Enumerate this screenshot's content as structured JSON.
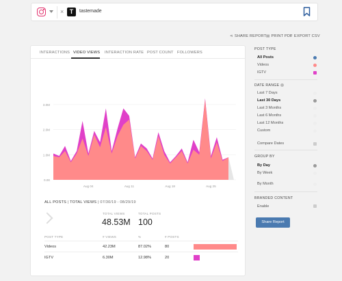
{
  "header": {
    "network_icon": "instagram-icon",
    "account_close": "×",
    "account_logo": "T",
    "account_name": "tastemade",
    "bookmark_icon": "bookmark-icon"
  },
  "actions": {
    "share_report": "SHARE REPORT",
    "print_pdf": "PRINT PDF",
    "export_csv": "EXPORT CSV"
  },
  "tabs": [
    "INTERACTIONS",
    "VIDEO VIEWS",
    "INTERACTION RATE",
    "POST COUNT",
    "FOLLOWERS"
  ],
  "active_tab": "VIDEO VIEWS",
  "chart_data": {
    "type": "area",
    "stacked": true,
    "y_ticks": [
      "0.00",
      "1.0M",
      "2.0M",
      "3.0M"
    ],
    "ylim": [
      0,
      3600000
    ],
    "x_ticks": [
      {
        "label": "Aug 04",
        "x": 6
      },
      {
        "label": "Aug 11",
        "x": 13
      },
      {
        "label": "Aug 18",
        "x": 20
      },
      {
        "label": "Aug 25",
        "x": 27
      }
    ],
    "x": [
      "Jul 30",
      "Jul 31",
      "Aug 01",
      "Aug 02",
      "Aug 03",
      "Aug 04",
      "Aug 05",
      "Aug 06",
      "Aug 07",
      "Aug 08",
      "Aug 09",
      "Aug 10",
      "Aug 11",
      "Aug 12",
      "Aug 13",
      "Aug 14",
      "Aug 15",
      "Aug 16",
      "Aug 17",
      "Aug 18",
      "Aug 19",
      "Aug 20",
      "Aug 21",
      "Aug 22",
      "Aug 23",
      "Aug 24",
      "Aug 25",
      "Aug 26",
      "Aug 27",
      "Aug 28",
      "Aug 29"
    ],
    "series": [
      {
        "name": "Videos",
        "color": "#ff8a8a",
        "values": [
          950000,
          900000,
          1150000,
          700000,
          1050000,
          1650000,
          950000,
          1800000,
          1300000,
          2100000,
          1050000,
          1750000,
          2200000,
          2400000,
          850000,
          1350000,
          1150000,
          800000,
          1750000,
          1000000,
          650000,
          900000,
          1150000,
          650000,
          1200000,
          1000000,
          3200000,
          850000,
          1500000,
          750000,
          900000
        ]
      },
      {
        "name": "IGTV",
        "color": "#e040c8",
        "values": [
          100000,
          50000,
          200000,
          50000,
          100000,
          700000,
          100000,
          150000,
          200000,
          750000,
          100000,
          300000,
          650000,
          150000,
          50000,
          100000,
          100000,
          50000,
          150000,
          150000,
          50000,
          50000,
          100000,
          50000,
          400000,
          100000,
          50000,
          100000,
          200000,
          50000,
          0
        ]
      }
    ],
    "trailing_gray": [
      900000,
      0
    ]
  },
  "summary": {
    "all_posts": "ALL POSTS",
    "total_views": "TOTAL VIEWS",
    "date_range": "07/30/19 - 08/29/19",
    "total_views_label": "TOTAL VIEWS",
    "total_views_value": "48.53M",
    "total_posts_label": "TOTAL POSTS",
    "total_posts_value": "100",
    "columns": [
      "POST TYPE",
      "# VIEWS",
      "%",
      "# POSTS"
    ],
    "rows": [
      {
        "type": "Videos",
        "views": "42.23M",
        "pct": "87.02%",
        "posts": "80",
        "share": 0.87,
        "color": "#ff8a8a"
      },
      {
        "type": "IGTV",
        "views": "6.30M",
        "pct": "12.98%",
        "posts": "20",
        "share": 0.13,
        "color": "#e040c8"
      }
    ]
  },
  "sidebar": {
    "post_type_title": "POST TYPE",
    "post_type_items": [
      {
        "label": "All Posts",
        "color": "#4a7ab0",
        "bold": true
      },
      {
        "label": "Videos",
        "color": "#ff8a8a",
        "bold": false
      },
      {
        "label": "IGTV",
        "color": "#e040c8",
        "bold": false
      }
    ],
    "date_range_title": "DATE RANGE",
    "date_items": [
      "Last 7 Days",
      "Last 30 Days",
      "Last 3 Months",
      "Last 6 Months",
      "Last 12 Months",
      "Custom"
    ],
    "date_selected": "Last 30 Days",
    "compare_dates": "Compare Dates",
    "group_by_title": "GROUP BY",
    "group_items": [
      "By Day",
      "By Week",
      "By Month"
    ],
    "group_selected": "By Day",
    "branded_title": "BRANDED CONTENT",
    "enable": "Enable",
    "share_button": "Share Report"
  }
}
